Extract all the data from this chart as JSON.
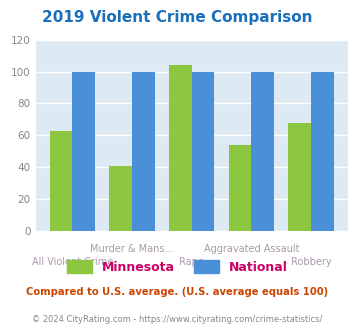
{
  "title": "2019 Violent Crime Comparison",
  "title_color": "#1a6fba",
  "categories": [
    "All Violent Crime",
    "Murder & Mans...",
    "Rape",
    "Aggravated Assault",
    "Robbery"
  ],
  "cat_top": [
    "",
    "Murder & Mans...",
    "",
    "Aggravated Assault",
    ""
  ],
  "cat_bottom": [
    "All Violent Crime",
    "",
    "Rape",
    "",
    "Robbery"
  ],
  "minnesota": [
    63,
    41,
    104,
    54,
    68
  ],
  "national": [
    100,
    100,
    100,
    100,
    100
  ],
  "mn_color": "#8dc63f",
  "nat_color": "#4a90d9",
  "bg_color": "#ddeaf3",
  "ylim": [
    0,
    120
  ],
  "yticks": [
    0,
    20,
    40,
    60,
    80,
    100,
    120
  ],
  "ylabel_color": "#888888",
  "legend_mn": "Minnesota",
  "legend_nat": "National",
  "legend_mn_color": "#8dc63f",
  "legend_nat_color": "#4a90d9",
  "note_text": "Compared to U.S. average. (U.S. average equals 100)",
  "note_color": "#cc4400",
  "copyright_text": "© 2024 CityRating.com - https://www.cityrating.com/crime-statistics/",
  "copyright_color": "#888888",
  "label_color": "#aa99aa",
  "grid_color": "#ffffff",
  "bar_width": 0.38
}
